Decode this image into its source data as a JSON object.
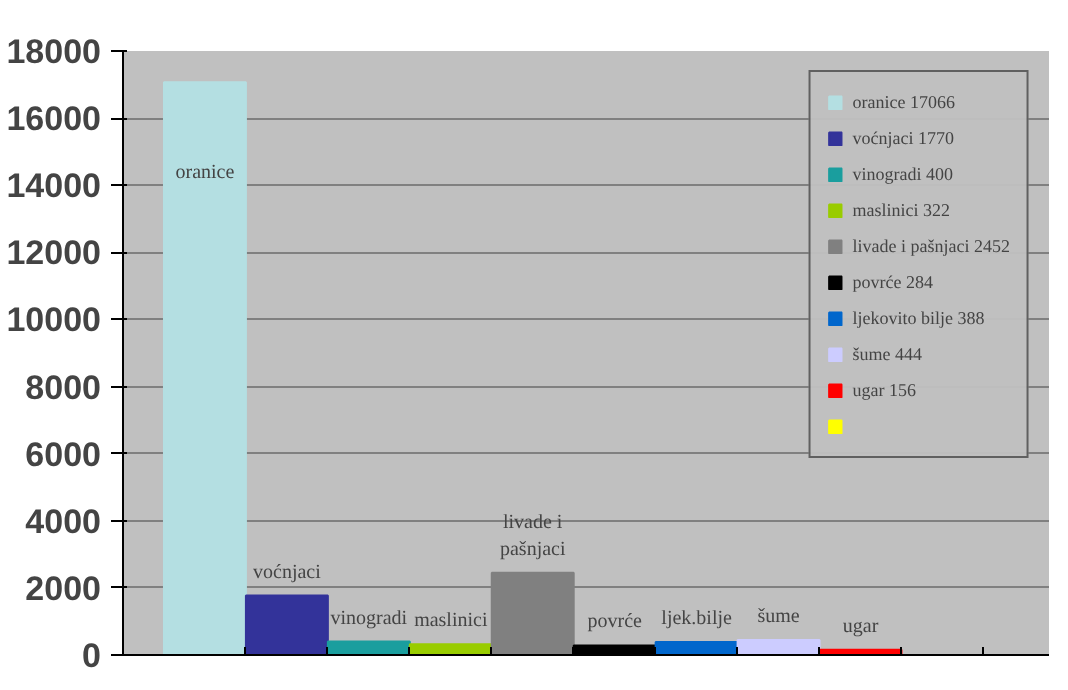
{
  "chart_data": {
    "type": "bar",
    "categories": [
      null
    ],
    "series": [
      {
        "name": "oranice 17066",
        "color": "#b4dfe2",
        "values": [
          17066
        ],
        "value_labels": [
          "oranice"
        ]
      },
      {
        "name": "voćnjaci 1770",
        "color": "#33339a",
        "values": [
          1770
        ],
        "value_labels": [
          "voćnjaci"
        ]
      },
      {
        "name": "vinogradi 400",
        "color": "#1a9e9e",
        "values": [
          400
        ],
        "value_labels": [
          "vinogradi"
        ]
      },
      {
        "name": "maslinici 322",
        "color": "#99cc00",
        "values": [
          322
        ],
        "value_labels": [
          "maslinici"
        ]
      },
      {
        "name": "livade i pašnjaci 2452",
        "color": "#808080",
        "values": [
          2452
        ],
        "value_labels": [
          "livade i\npašnjaci"
        ]
      },
      {
        "name": "povrće 284",
        "color": "#000000",
        "values": [
          284
        ],
        "value_labels": [
          "povrće"
        ]
      },
      {
        "name": "ljekovito bilje 388",
        "color": "#0066cc",
        "values": [
          388
        ],
        "value_labels": [
          "ljek.bilje"
        ]
      },
      {
        "name": "šume 444",
        "color": "#ccccff",
        "values": [
          444
        ],
        "value_labels": [
          "šume"
        ]
      },
      {
        "name": "ugar 156",
        "color": "#ff0000",
        "values": [
          156
        ],
        "value_labels": [
          "ugar"
        ]
      },
      {
        "color": "#ffff00",
        "values": [
          0
        ]
      }
    ],
    "ylim": [
      0,
      18000
    ],
    "yticks": [
      0,
      2000,
      4000,
      6000,
      8000,
      10000,
      12000,
      14000,
      16000,
      18000
    ],
    "grid": "y",
    "legend": "top right",
    "tick_labels": "y"
  }
}
